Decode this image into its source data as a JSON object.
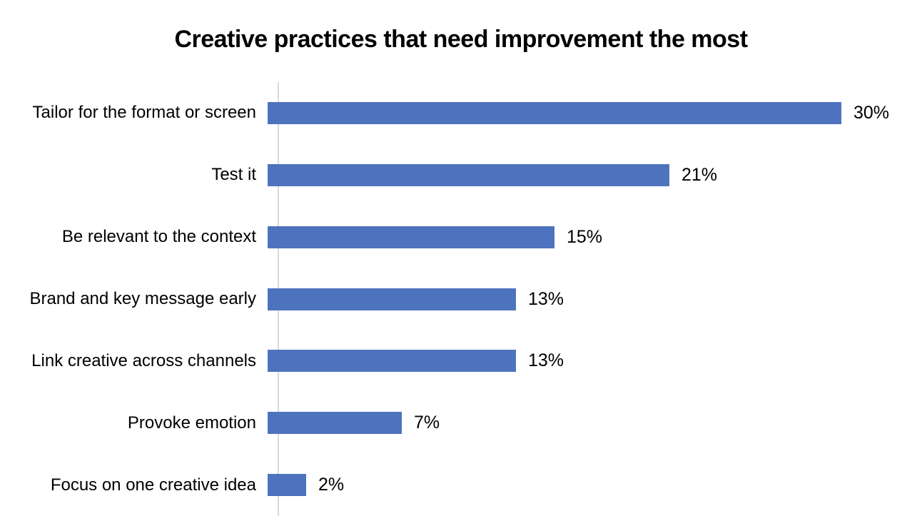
{
  "chart_data": {
    "type": "bar",
    "orientation": "horizontal",
    "title": "Creative practices that need improvement the most",
    "categories": [
      "Tailor for the format or screen",
      "Test it",
      "Be relevant to the context",
      "Brand and key message early",
      "Link creative across channels",
      "Provoke emotion",
      "Focus on one creative idea"
    ],
    "values": [
      30,
      21,
      15,
      13,
      13,
      7,
      2
    ],
    "value_labels": [
      "30%",
      "21%",
      "15%",
      "13%",
      "13%",
      "7%",
      "2%"
    ],
    "xlabel": "",
    "ylabel": "",
    "xlim": [
      0,
      30
    ],
    "grid": false,
    "legend": false,
    "data_labels_position": "outside-end"
  },
  "colors": {
    "bar": "#4D73BE",
    "axis_line": "#D9D9D9",
    "text": "#000000",
    "background": "#FFFFFF"
  }
}
